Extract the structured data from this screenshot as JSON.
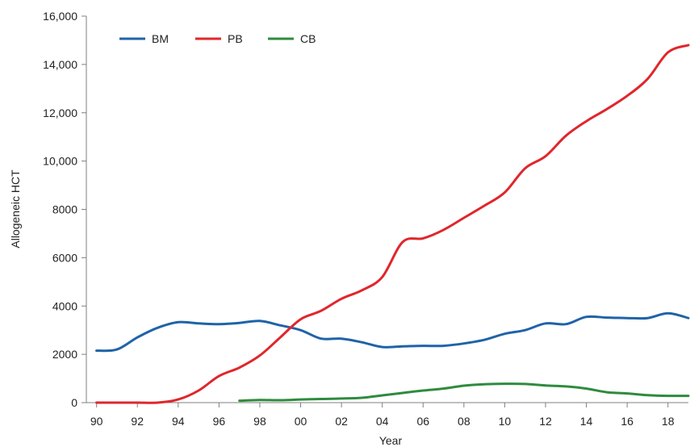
{
  "chart_data": {
    "type": "line",
    "xlabel": "Year",
    "ylabel": "Allogeneic HCT",
    "x": [
      1990,
      1991,
      1992,
      1993,
      1994,
      1995,
      1996,
      1997,
      1998,
      1999,
      2000,
      2001,
      2002,
      2003,
      2004,
      2005,
      2006,
      2007,
      2008,
      2009,
      2010,
      2011,
      2012,
      2013,
      2014,
      2015,
      2016,
      2017,
      2018,
      2019
    ],
    "x_tick_labels": [
      "90",
      "92",
      "94",
      "96",
      "98",
      "00",
      "02",
      "04",
      "06",
      "08",
      "10",
      "12",
      "14",
      "16",
      "18"
    ],
    "x_tick_years": [
      1990,
      1992,
      1994,
      1996,
      1998,
      2000,
      2002,
      2004,
      2006,
      2008,
      2010,
      2012,
      2014,
      2016,
      2018
    ],
    "xlim": [
      1989.5,
      2019
    ],
    "ylim": [
      0,
      16000
    ],
    "y_ticks": [
      0,
      2000,
      4000,
      6000,
      8000,
      10000,
      12000,
      14000,
      16000
    ],
    "y_tick_labels": [
      "0",
      "2000",
      "4000",
      "6000",
      "8000",
      "10,000",
      "12,000",
      "14,000",
      "16,000"
    ],
    "grid": false,
    "legend_position": "top-left",
    "series": [
      {
        "name": "BM",
        "color": "#1f63a8",
        "values": [
          2150,
          2200,
          2700,
          3100,
          3330,
          3280,
          3250,
          3300,
          3380,
          3200,
          3000,
          2650,
          2650,
          2500,
          2300,
          2330,
          2350,
          2350,
          2450,
          2600,
          2850,
          3000,
          3280,
          3250,
          3550,
          3520,
          3500,
          3500,
          3700,
          3500
        ]
      },
      {
        "name": "PB",
        "color": "#e0262c",
        "values": [
          0,
          0,
          0,
          0,
          130,
          500,
          1100,
          1450,
          1950,
          2700,
          3450,
          3800,
          4300,
          4650,
          5200,
          6650,
          6800,
          7150,
          7650,
          8150,
          8700,
          9700,
          10200,
          11050,
          11650,
          12150,
          12700,
          13400,
          14500,
          14800
        ]
      },
      {
        "name": "CB",
        "color": "#2e8b3e",
        "values": [
          null,
          null,
          null,
          null,
          null,
          null,
          null,
          80,
          110,
          100,
          130,
          150,
          170,
          200,
          300,
          400,
          500,
          580,
          700,
          760,
          780,
          770,
          710,
          670,
          580,
          430,
          380,
          310,
          280,
          280
        ]
      }
    ]
  }
}
